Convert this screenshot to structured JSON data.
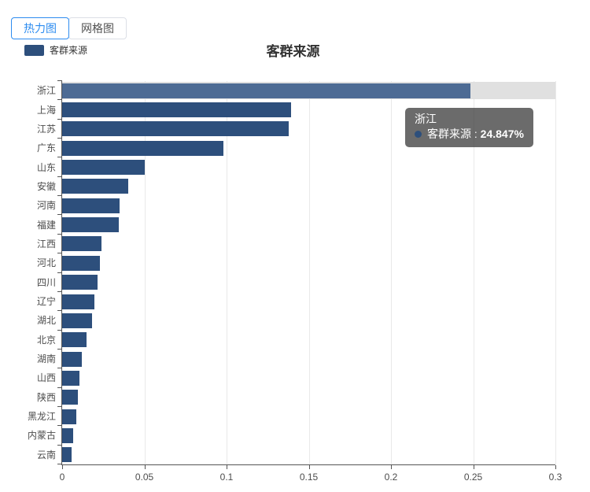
{
  "tabs": [
    {
      "label": "热力图",
      "active": true
    },
    {
      "label": "网格图",
      "active": false
    }
  ],
  "legend": {
    "label": "客群来源"
  },
  "tooltip": {
    "name": "浙江",
    "series_label": "客群来源",
    "separator": " : ",
    "value": "24.847%"
  },
  "colors": {
    "accent": "#2d8cf0",
    "bar": "#2d4f7c",
    "bar_hover": "#4d6b94",
    "row_highlight_bg": "#e0e0e0",
    "grid": "#e9e9e9",
    "axis": "#555555",
    "axis_label": "#4c4c4c",
    "tooltip_bg": "rgba(50,50,50,0.72)"
  },
  "chart_data": {
    "type": "bar",
    "orientation": "horizontal",
    "title": "客群来源",
    "series_name": "客群来源",
    "categories": [
      "浙江",
      "上海",
      "江苏",
      "广东",
      "山东",
      "安徽",
      "河南",
      "福建",
      "江西",
      "河北",
      "四川",
      "辽宁",
      "湖北",
      "北京",
      "湖南",
      "山西",
      "陕西",
      "黑龙江",
      "内蒙古",
      "云南"
    ],
    "values": [
      0.24847,
      0.139,
      0.138,
      0.098,
      0.05,
      0.04,
      0.0348,
      0.0344,
      0.024,
      0.023,
      0.0213,
      0.0198,
      0.018,
      0.015,
      0.0118,
      0.0105,
      0.0094,
      0.0084,
      0.0065,
      0.0056
    ],
    "xlim": [
      0,
      0.3
    ],
    "x_ticks": [
      "0",
      "0.05",
      "0.1",
      "0.15",
      "0.2",
      "0.25",
      "0.3"
    ],
    "highlighted_index": 0,
    "highlighted_value_label": "24.847%",
    "grid": true,
    "legend_position": "top-left"
  }
}
